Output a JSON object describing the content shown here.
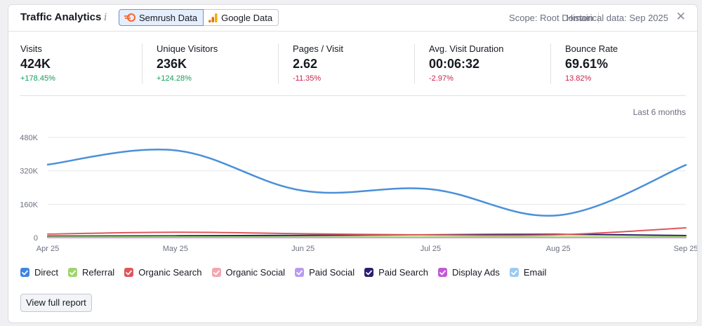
{
  "header": {
    "title": "Traffic Analytics",
    "info_icon": "info-icon",
    "tabs": [
      {
        "label": "Semrush Data",
        "icon": "semrush-logo-icon",
        "active": true
      },
      {
        "label": "Google Data",
        "icon": "google-analytics-icon",
        "active": false
      }
    ],
    "scope": "Scope: Root Domain",
    "historical": "Historical data: Sep 2025",
    "close_icon": "close-icon"
  },
  "metrics": [
    {
      "label": "Visits",
      "value": "424K",
      "delta": "+178.45%",
      "trend": "up"
    },
    {
      "label": "Unique Visitors",
      "value": "236K",
      "delta": "+124.28%",
      "trend": "up"
    },
    {
      "label": "Pages / Visit",
      "value": "2.62",
      "delta": "-11.35%",
      "trend": "down"
    },
    {
      "label": "Avg. Visit Duration",
      "value": "00:06:32",
      "delta": "-2.97%",
      "trend": "down"
    },
    {
      "label": "Bounce Rate",
      "value": "69.61%",
      "delta": "13.82%",
      "trend": "down"
    }
  ],
  "period": "Last 6 months",
  "chart_data": {
    "type": "line",
    "x": [
      "Apr 25",
      "May 25",
      "Jun 25",
      "Jul 25",
      "Aug 25",
      "Sep 25"
    ],
    "yticks": [
      "480K",
      "320K",
      "160K",
      "0"
    ],
    "ylim": [
      0,
      480000
    ],
    "grid": true,
    "series": [
      {
        "name": "Direct",
        "color": "#4a90d9",
        "values": [
          350000,
          418000,
          225000,
          232000,
          107000,
          348000
        ]
      },
      {
        "name": "Referral",
        "color": "#9ed56b",
        "values": [
          3000,
          4000,
          3000,
          3000,
          3000,
          4000
        ]
      },
      {
        "name": "Organic Search",
        "color": "#e0565b",
        "values": [
          17000,
          26000,
          19000,
          13000,
          14000,
          47000
        ]
      },
      {
        "name": "Organic Social",
        "color": "#f2a7b0",
        "values": [
          2000,
          3000,
          2000,
          2000,
          2000,
          3000
        ]
      },
      {
        "name": "Paid Social",
        "color": "#b89bf0",
        "values": [
          1000,
          1000,
          1000,
          1000,
          1000,
          1000
        ]
      },
      {
        "name": "Paid Search",
        "color": "#2d1e6e",
        "values": [
          7000,
          9000,
          11000,
          14000,
          16000,
          10000
        ]
      },
      {
        "name": "Display Ads",
        "color": "#c259d6",
        "values": [
          1000,
          1000,
          1000,
          1000,
          1000,
          1000
        ]
      },
      {
        "name": "Email",
        "color": "#9ccbf0",
        "values": [
          1000,
          1000,
          1000,
          1000,
          1000,
          1000
        ]
      }
    ]
  },
  "legend": [
    {
      "label": "Direct",
      "color": "#3f86e0"
    },
    {
      "label": "Referral",
      "color": "#9ed56b"
    },
    {
      "label": "Organic Search",
      "color": "#e0565b"
    },
    {
      "label": "Organic Social",
      "color": "#f2a7b0"
    },
    {
      "label": "Paid Social",
      "color": "#b89bf0"
    },
    {
      "label": "Paid Search",
      "color": "#2d1e6e"
    },
    {
      "label": "Display Ads",
      "color": "#c259d6"
    },
    {
      "label": "Email",
      "color": "#9ccbf0"
    }
  ],
  "footer": {
    "view_button": "View full report"
  }
}
